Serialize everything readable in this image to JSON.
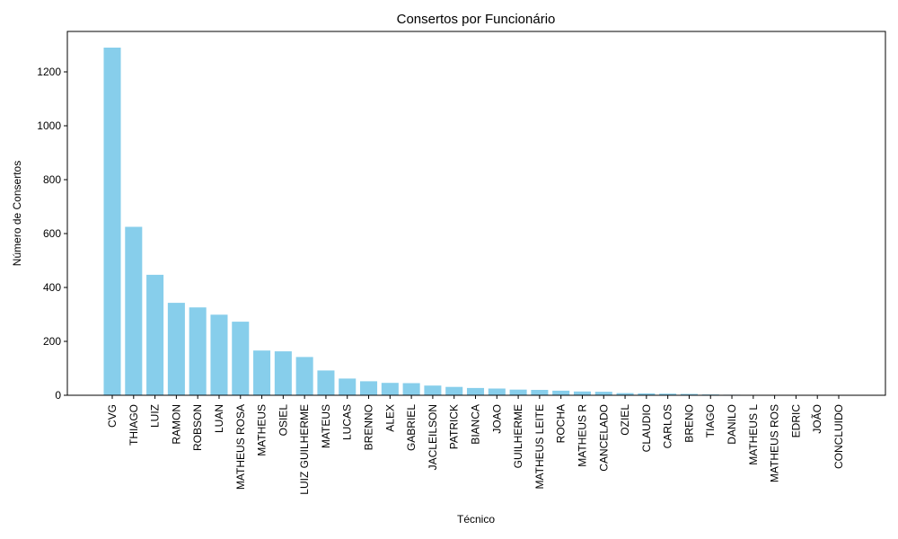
{
  "chart_data": {
    "type": "bar",
    "title": "Consertos por Funcionário",
    "xlabel": "Técnico",
    "ylabel": "Número de Consertos",
    "ylim": [
      0,
      1350
    ],
    "yticks": [
      0,
      200,
      400,
      600,
      800,
      1000,
      1200
    ],
    "grid": false,
    "bar_color": "#87ceeb",
    "categories": [
      "CVG",
      "THIAGO",
      "LUIZ",
      "RAMON",
      "ROBSON",
      "LUAN",
      "MATHEUS ROSA",
      "MATHEUS",
      "OSIEL",
      "LUIZ GUILHERME",
      "MATEUS",
      "LUCAS",
      "BRENNO",
      "ALEX",
      "GABRIEL",
      "JACLEILSON",
      "PATRICK",
      "BIANCA",
      "JOAO",
      "GUILHERME",
      "MATHEUS LEITE",
      "ROCHA",
      "MATHEUS R",
      "CANCELADO",
      "OZIEL",
      "CLAUDIO",
      "CARLOS",
      "BRENO",
      "TIAGO",
      "DANILO",
      "MATHEUS L",
      "MATHEUS ROS",
      "EDRIC",
      "JOÃO",
      "CONCLUIDO"
    ],
    "values": [
      1290,
      625,
      447,
      343,
      326,
      299,
      273,
      166,
      163,
      142,
      92,
      62,
      52,
      46,
      45,
      36,
      31,
      27,
      25,
      21,
      20,
      17,
      14,
      13,
      8,
      7,
      6,
      5,
      3,
      2,
      1,
      1,
      1,
      1,
      1
    ]
  }
}
